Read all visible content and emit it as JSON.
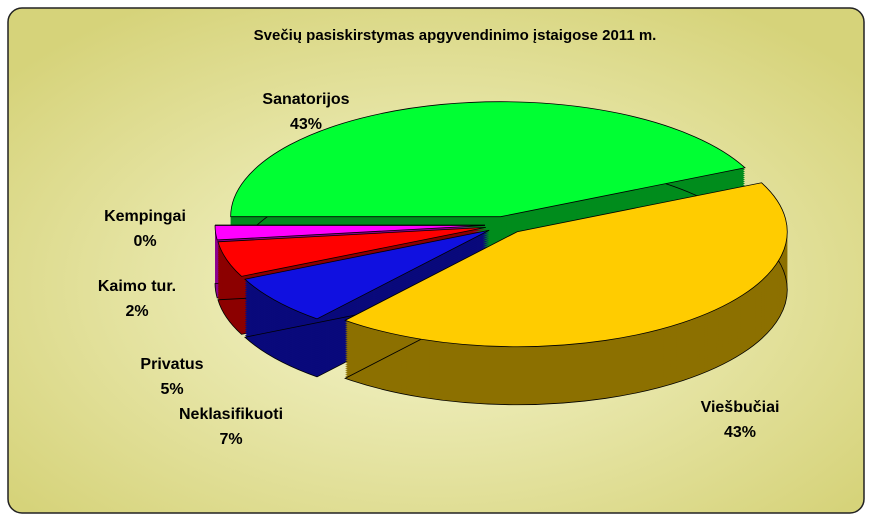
{
  "chart_data": {
    "type": "pie3d",
    "title": "Svečių pasiskirstymas apgyvendinimo įstaigose 2011 m.",
    "categories": [
      "Sanatorijos",
      "Viešbučiai",
      "Neklasifikuoti",
      "Privatus",
      "Kaimo tur.",
      "Kempingai"
    ],
    "values": [
      43,
      43,
      7,
      5,
      2,
      0
    ],
    "value_labels": [
      "43%",
      "43%",
      "7%",
      "5%",
      "2%",
      "0%"
    ],
    "colors": [
      "#00ff33",
      "#ffcc00",
      "#1010e0",
      "#ff0000",
      "#ff00ff",
      "#000000"
    ]
  }
}
